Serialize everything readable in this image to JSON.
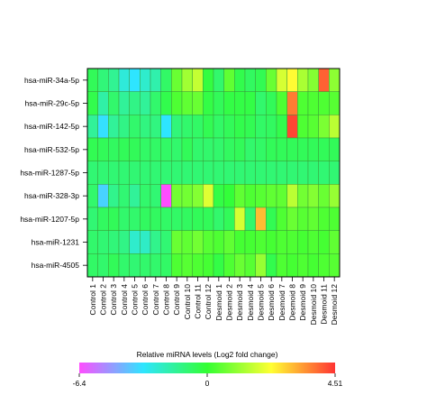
{
  "chart_data": {
    "type": "heatmap",
    "columns": [
      "Control 1",
      "Control 2",
      "Control 3",
      "Control 4",
      "Control 5",
      "Control 6",
      "Control 7",
      "Control 8",
      "Control 9",
      "Control 10",
      "Control 11",
      "Control 12",
      "Desmoid 1",
      "Desmoid 2",
      "Desmoid 3",
      "Desmoid 4",
      "Desmoid 5",
      "Desmoid 6",
      "Desmoid 7",
      "Desmoid 8",
      "Desmoid 9",
      "Desmoid 10",
      "Desmoid 11",
      "Desmoid 12"
    ],
    "rows": [
      "hsa-miR-34a-5p",
      "hsa-miR-29c-5p",
      "hsa-miR-142-5p",
      "hsa-miR-532-5p",
      "hsa-miR-1287-5p",
      "hsa-miR-328-3p",
      "hsa-miR-1207-5p",
      "hsa-miR-1231",
      "hsa-miR-4505"
    ],
    "values": [
      [
        -0.6,
        -1.1,
        -1.5,
        -2.6,
        -3.2,
        -2.4,
        -1.9,
        -0.8,
        0.6,
        1.2,
        1.6,
        -0.2,
        -0.9,
        0.5,
        -0.4,
        -0.7,
        -0.5,
        0.6,
        1.8,
        2.3,
        1.3,
        0.9,
        4.0,
        1.0
      ],
      [
        -0.4,
        -1.8,
        -0.9,
        -1.6,
        -1.3,
        -1.6,
        -0.9,
        -0.4,
        0.3,
        0.5,
        0.6,
        -0.3,
        -0.6,
        -0.3,
        -0.3,
        -0.3,
        -0.9,
        -0.6,
        0.3,
        3.7,
        0.3,
        0.3,
        0.3,
        0.4
      ],
      [
        -1.6,
        -3.3,
        -1.6,
        -1.3,
        -0.9,
        -1.2,
        -1.2,
        -3.2,
        -1.1,
        -0.9,
        -0.8,
        -0.5,
        -0.8,
        -0.6,
        -0.4,
        -0.5,
        -0.8,
        -0.7,
        -0.4,
        4.3,
        0.3,
        0.4,
        0.8,
        1.5
      ],
      [
        -0.5,
        -0.6,
        -0.7,
        -0.6,
        -0.6,
        -0.8,
        -0.8,
        -0.8,
        -0.9,
        -0.6,
        -0.9,
        -0.9,
        -0.9,
        -0.7,
        -0.6,
        -0.9,
        -0.8,
        -0.6,
        -0.6,
        -0.6,
        -0.6,
        -0.6,
        -0.6,
        -0.6
      ],
      [
        -1.0,
        -1.0,
        -1.0,
        -1.0,
        -1.0,
        -1.0,
        -1.0,
        -1.0,
        -1.0,
        -1.0,
        -1.0,
        -1.0,
        -1.0,
        -1.0,
        -1.0,
        -1.0,
        -1.0,
        -1.0,
        -1.0,
        -1.0,
        -1.0,
        -1.0,
        -1.0,
        -1.0
      ],
      [
        -0.9,
        -3.6,
        -1.4,
        -1.0,
        -1.6,
        -0.9,
        -1.0,
        -6.4,
        0.7,
        0.7,
        0.9,
        1.9,
        -0.3,
        -0.1,
        0.5,
        0.3,
        0.4,
        0.5,
        0.5,
        1.5,
        0.7,
        0.9,
        0.6,
        1.1
      ],
      [
        -1.0,
        -0.7,
        -0.6,
        -0.9,
        -0.9,
        -0.7,
        -0.7,
        -0.8,
        -0.8,
        -0.7,
        -0.6,
        -0.6,
        -0.9,
        -0.6,
        1.8,
        -0.9,
        3.0,
        -0.5,
        0.3,
        0.6,
        0.4,
        0.5,
        0.3,
        0.3
      ],
      [
        -0.9,
        -1.0,
        -1.1,
        -1.3,
        -2.4,
        -2.3,
        -1.4,
        -1.0,
        0.6,
        0.5,
        0.7,
        0.4,
        0.3,
        0.5,
        0.2,
        0.2,
        0.3,
        0.2,
        0.3,
        0.3,
        0.2,
        0.3,
        0.2,
        0.5
      ],
      [
        -0.8,
        -0.9,
        -0.6,
        -0.9,
        -1.0,
        -0.9,
        -0.9,
        -0.8,
        0.3,
        0.4,
        0.3,
        0.2,
        -0.3,
        0.3,
        0.6,
        0.4,
        1.1,
        -0.4,
        0.3,
        0.2,
        0.3,
        0.2,
        0.3,
        0.4
      ]
    ],
    "colorbar": {
      "label": "Relative miRNA levels  (Log2 fold change)",
      "min": -6.4,
      "mid": 0,
      "max": 4.51,
      "tick_labels": [
        "-6.4",
        "0",
        "4.51"
      ],
      "colors": [
        "#ff4dff",
        "#2ee5ff",
        "#33ff33",
        "#ffff33",
        "#ff3333"
      ]
    }
  }
}
